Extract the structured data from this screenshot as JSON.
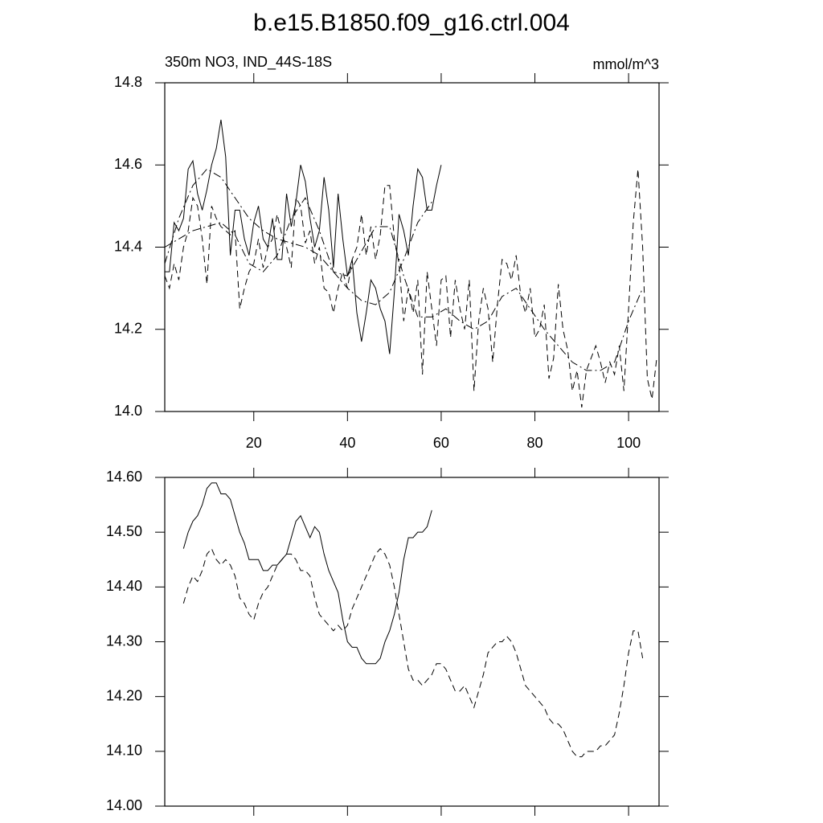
{
  "chart_data": [
    {
      "type": "line",
      "title": "b.e15.B1850.f09_g16.ctrl.004",
      "left_label": "350m NO3, IND_44S-18S",
      "right_label": "mmol/m^3",
      "xlim": [
        1,
        106.5
      ],
      "xticks": [
        20,
        40,
        60,
        80,
        100
      ],
      "show_xtick_labels": true,
      "ylim": [
        14.0,
        14.8
      ],
      "yticks": [
        {
          "value": 14.0,
          "label": "14.0"
        },
        14.2,
        14.4,
        14.6,
        14.8
      ],
      "series": [
        {
          "color": "#000000",
          "style": "solid",
          "x": [
            1,
            2,
            3,
            4,
            5,
            6,
            7,
            8,
            9,
            10,
            11,
            12,
            13,
            14,
            15,
            16,
            17,
            18,
            19,
            20,
            21,
            22,
            23,
            24,
            25,
            26,
            27,
            28,
            29,
            30,
            31,
            32,
            33,
            34,
            35,
            36,
            37,
            38,
            39,
            40,
            41,
            42,
            43,
            44,
            45,
            46,
            47,
            48,
            49,
            50,
            51,
            52,
            53,
            54,
            55,
            56,
            57,
            58,
            59,
            60
          ],
          "values": [
            14.34,
            14.34,
            14.46,
            14.44,
            14.47,
            14.59,
            14.61,
            14.53,
            14.49,
            14.54,
            14.6,
            14.64,
            14.71,
            14.62,
            14.38,
            14.49,
            14.49,
            14.42,
            14.38,
            14.46,
            14.5,
            14.42,
            14.4,
            14.47,
            14.37,
            14.37,
            14.53,
            14.45,
            14.51,
            14.6,
            14.56,
            14.47,
            14.4,
            14.44,
            14.57,
            14.49,
            14.35,
            14.53,
            14.42,
            14.33,
            14.37,
            14.24,
            14.17,
            14.24,
            14.32,
            14.3,
            14.25,
            14.22,
            14.14,
            14.29,
            14.48,
            14.44,
            14.38,
            14.5,
            14.59,
            14.57,
            14.49,
            14.49,
            14.55,
            14.6
          ]
        },
        {
          "color": "#000000",
          "style": "dashed",
          "x": [
            1,
            2,
            3,
            4,
            5,
            6,
            7,
            8,
            9,
            10,
            11,
            12,
            13,
            14,
            15,
            16,
            17,
            18,
            19,
            20,
            21,
            22,
            23,
            24,
            25,
            26,
            27,
            28,
            29,
            30,
            31,
            32,
            33,
            34,
            35,
            36,
            37,
            38,
            39,
            40,
            41,
            42,
            43,
            44,
            45,
            46,
            47,
            48,
            49,
            50,
            51,
            52,
            53,
            54,
            55,
            56,
            57,
            58,
            59,
            60,
            61,
            62,
            63,
            64,
            65,
            66,
            67,
            68,
            69,
            70,
            71,
            72,
            73,
            74,
            75,
            76,
            77,
            78,
            79,
            80,
            81,
            82,
            83,
            84,
            85,
            86,
            87,
            88,
            89,
            90,
            91,
            92,
            93,
            94,
            95,
            96,
            97,
            98,
            99,
            100,
            101,
            102,
            103,
            104,
            105,
            106
          ],
          "values": [
            14.33,
            14.3,
            14.36,
            14.32,
            14.4,
            14.44,
            14.52,
            14.5,
            14.42,
            14.31,
            14.5,
            14.47,
            14.45,
            14.44,
            14.43,
            14.44,
            14.25,
            14.3,
            14.34,
            14.36,
            14.42,
            14.35,
            14.4,
            14.42,
            14.48,
            14.43,
            14.4,
            14.35,
            14.52,
            14.5,
            14.41,
            14.44,
            14.36,
            14.4,
            14.3,
            14.29,
            14.24,
            14.3,
            14.34,
            14.3,
            14.37,
            14.4,
            14.48,
            14.38,
            14.45,
            14.37,
            14.43,
            14.55,
            14.55,
            14.42,
            14.36,
            14.22,
            14.3,
            14.24,
            14.32,
            14.09,
            14.34,
            14.25,
            14.16,
            14.32,
            14.33,
            14.18,
            14.32,
            14.25,
            14.2,
            14.32,
            14.05,
            14.22,
            14.3,
            14.25,
            14.12,
            14.26,
            14.37,
            14.36,
            14.32,
            14.38,
            14.28,
            14.24,
            14.3,
            14.18,
            14.2,
            14.26,
            14.08,
            14.13,
            14.31,
            14.2,
            14.15,
            14.05,
            14.1,
            14.01,
            14.1,
            14.13,
            14.16,
            14.12,
            14.07,
            14.12,
            14.09,
            14.16,
            14.05,
            14.25,
            14.46,
            14.59,
            14.4,
            14.08,
            14.03,
            14.13
          ]
        },
        {
          "color": "#000000",
          "style": "dashdot",
          "x": [
            1,
            4,
            7,
            10,
            13,
            16,
            19,
            22,
            25,
            28,
            31,
            34,
            37,
            40,
            43,
            46,
            49,
            52,
            55,
            58
          ],
          "values": [
            14.36,
            14.47,
            14.55,
            14.59,
            14.57,
            14.52,
            14.47,
            14.44,
            14.42,
            14.41,
            14.4,
            14.38,
            14.34,
            14.3,
            14.27,
            14.26,
            14.29,
            14.37,
            14.46,
            14.51
          ]
        },
        {
          "color": "#000000",
          "style": "dashdot",
          "x": [
            1,
            4,
            7,
            10,
            13,
            16,
            19,
            22,
            25,
            28,
            31,
            34,
            37,
            40,
            43,
            46,
            49,
            52,
            55,
            58,
            61,
            64,
            67,
            70,
            73,
            76,
            79,
            82,
            85,
            88,
            91,
            94,
            97,
            100,
            103
          ],
          "values": [
            14.4,
            14.42,
            14.44,
            14.45,
            14.46,
            14.43,
            14.36,
            14.34,
            14.38,
            14.47,
            14.52,
            14.44,
            14.34,
            14.33,
            14.39,
            14.45,
            14.45,
            14.33,
            14.23,
            14.23,
            14.25,
            14.22,
            14.2,
            14.22,
            14.28,
            14.3,
            14.25,
            14.2,
            14.16,
            14.12,
            14.1,
            14.1,
            14.12,
            14.22,
            14.3
          ]
        }
      ]
    },
    {
      "type": "line",
      "xlim": [
        1,
        106.5
      ],
      "xticks": [
        20,
        40,
        60,
        80,
        100
      ],
      "show_xtick_labels": false,
      "ylim": [
        14.0,
        14.6
      ],
      "yticks": [
        {
          "value": 14.0,
          "label": "14.00"
        },
        {
          "value": 14.1,
          "label": "14.10"
        },
        {
          "value": 14.2,
          "label": "14.20"
        },
        {
          "value": 14.3,
          "label": "14.30"
        },
        {
          "value": 14.4,
          "label": "14.40"
        },
        {
          "value": 14.5,
          "label": "14.50"
        },
        {
          "value": 14.6,
          "label": "14.60"
        }
      ],
      "series": [
        {
          "color": "#000000",
          "style": "solid",
          "x": [
            5,
            6,
            7,
            8,
            9,
            10,
            11,
            12,
            13,
            14,
            15,
            16,
            17,
            18,
            19,
            20,
            21,
            22,
            23,
            24,
            25,
            26,
            27,
            28,
            29,
            30,
            31,
            32,
            33,
            34,
            35,
            36,
            37,
            38,
            39,
            40,
            41,
            42,
            43,
            44,
            45,
            46,
            47,
            48,
            49,
            50,
            51,
            52,
            53,
            54,
            55,
            56,
            57,
            58
          ],
          "values": [
            14.47,
            14.5,
            14.52,
            14.53,
            14.55,
            14.58,
            14.59,
            14.59,
            14.57,
            14.57,
            14.56,
            14.53,
            14.5,
            14.48,
            14.45,
            14.45,
            14.45,
            14.43,
            14.43,
            14.44,
            14.44,
            14.45,
            14.46,
            14.49,
            14.52,
            14.53,
            14.51,
            14.49,
            14.51,
            14.5,
            14.46,
            14.43,
            14.41,
            14.39,
            14.34,
            14.3,
            14.29,
            14.29,
            14.27,
            14.26,
            14.26,
            14.26,
            14.27,
            14.3,
            14.32,
            14.35,
            14.39,
            14.45,
            14.49,
            14.49,
            14.5,
            14.5,
            14.51,
            14.54
          ]
        },
        {
          "color": "#000000",
          "style": "dashed",
          "x": [
            5,
            6,
            7,
            8,
            9,
            10,
            11,
            12,
            13,
            14,
            15,
            16,
            17,
            18,
            19,
            20,
            21,
            22,
            23,
            24,
            25,
            26,
            27,
            28,
            29,
            30,
            31,
            32,
            33,
            34,
            35,
            36,
            37,
            38,
            39,
            40,
            41,
            42,
            43,
            44,
            45,
            46,
            47,
            48,
            49,
            50,
            51,
            52,
            53,
            54,
            55,
            56,
            57,
            58,
            59,
            60,
            61,
            62,
            63,
            64,
            65,
            66,
            67,
            68,
            69,
            70,
            71,
            72,
            73,
            74,
            75,
            76,
            77,
            78,
            79,
            80,
            81,
            82,
            83,
            84,
            85,
            86,
            87,
            88,
            89,
            90,
            91,
            92,
            93,
            94,
            95,
            96,
            97,
            98,
            99,
            100,
            101,
            102,
            103
          ],
          "values": [
            14.37,
            14.4,
            14.42,
            14.41,
            14.43,
            14.46,
            14.47,
            14.45,
            14.44,
            14.45,
            14.44,
            14.42,
            14.38,
            14.37,
            14.35,
            14.34,
            14.37,
            14.39,
            14.4,
            14.42,
            14.44,
            14.45,
            14.46,
            14.46,
            14.45,
            14.43,
            14.43,
            14.42,
            14.38,
            14.35,
            14.34,
            14.33,
            14.32,
            14.33,
            14.32,
            14.33,
            14.36,
            14.38,
            14.4,
            14.42,
            14.44,
            14.46,
            14.47,
            14.46,
            14.44,
            14.4,
            14.35,
            14.3,
            14.25,
            14.23,
            14.23,
            14.22,
            14.23,
            14.24,
            14.26,
            14.26,
            14.25,
            14.23,
            14.21,
            14.21,
            14.22,
            14.2,
            14.18,
            14.21,
            14.24,
            14.28,
            14.29,
            14.3,
            14.3,
            14.31,
            14.3,
            14.28,
            14.25,
            14.22,
            14.21,
            14.2,
            14.19,
            14.18,
            14.16,
            14.15,
            14.15,
            14.14,
            14.12,
            14.1,
            14.09,
            14.09,
            14.1,
            14.1,
            14.1,
            14.11,
            14.11,
            14.12,
            14.13,
            14.17,
            14.22,
            14.28,
            14.32,
            14.32,
            14.27
          ]
        }
      ]
    }
  ]
}
